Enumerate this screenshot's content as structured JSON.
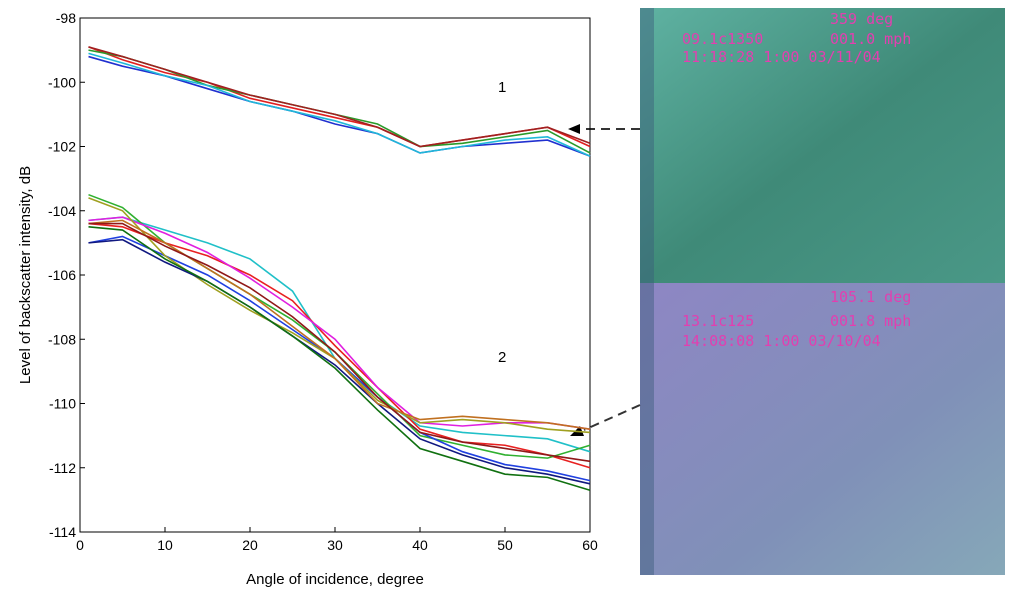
{
  "chart_data": {
    "type": "line",
    "x_label": "Angle of incidence, degree",
    "y_label": "Level of backscatter intensity, dB",
    "annotations": [
      "1",
      "2"
    ],
    "xlim": [
      0,
      60
    ],
    "xticks": [
      0,
      10,
      20,
      30,
      40,
      50,
      60
    ],
    "ylim": [
      -114,
      -98
    ],
    "yticks": [
      -114,
      -112,
      -110,
      -108,
      -106,
      -104,
      -102,
      -100,
      -98
    ],
    "x": [
      1,
      5,
      10,
      15,
      20,
      25,
      30,
      35,
      40,
      45,
      50,
      55,
      60
    ],
    "series": [
      {
        "color": "#e02020",
        "values": [
          -98.9,
          -99.3,
          -99.7,
          -100.0,
          -100.5,
          -100.8,
          -101.1,
          -101.4,
          -102.0,
          -101.8,
          -101.6,
          -101.4,
          -102.0
        ]
      },
      {
        "color": "#2a9a2a",
        "values": [
          -99.0,
          -99.2,
          -99.6,
          -100.1,
          -100.4,
          -100.7,
          -101.0,
          -101.3,
          -102.0,
          -101.9,
          -101.7,
          -101.5,
          -102.2
        ]
      },
      {
        "color": "#2030d0",
        "values": [
          -99.2,
          -99.5,
          -99.8,
          -100.2,
          -100.6,
          -100.9,
          -101.3,
          -101.6,
          -102.2,
          -102.0,
          -101.9,
          -101.8,
          -102.3
        ]
      },
      {
        "color": "#20b8d8",
        "values": [
          -99.1,
          -99.4,
          -99.8,
          -100.1,
          -100.6,
          -100.9,
          -101.2,
          -101.6,
          -102.2,
          -102.0,
          -101.8,
          -101.7,
          -102.3
        ]
      },
      {
        "color": "#a02020",
        "values": [
          -98.9,
          -99.2,
          -99.6,
          -100.0,
          -100.4,
          -100.7,
          -101.0,
          -101.4,
          -102.0,
          -101.8,
          -101.6,
          -101.4,
          -101.9
        ]
      },
      {
        "color": "#20c0c8",
        "values": [
          -104.3,
          -104.2,
          -104.6,
          -105.0,
          -105.5,
          -106.5,
          -108.6,
          -109.8,
          -110.7,
          -110.9,
          -111.0,
          -111.1,
          -111.5
        ]
      },
      {
        "color": "#e82020",
        "values": [
          -104.4,
          -104.5,
          -105.0,
          -105.4,
          -106.0,
          -106.8,
          -108.2,
          -109.5,
          -110.8,
          -111.2,
          -111.3,
          -111.6,
          -112.0
        ]
      },
      {
        "color": "#30b030",
        "values": [
          -103.5,
          -103.9,
          -105.0,
          -105.8,
          -106.6,
          -107.4,
          -108.4,
          -109.7,
          -111.0,
          -111.3,
          -111.6,
          -111.7,
          -111.3
        ]
      },
      {
        "color": "#2040e0",
        "values": [
          -105.0,
          -104.8,
          -105.4,
          -106.0,
          -106.8,
          -107.7,
          -108.6,
          -109.8,
          -110.9,
          -111.5,
          -111.9,
          -112.1,
          -112.4
        ]
      },
      {
        "color": "#e020e0",
        "values": [
          -104.3,
          -104.2,
          -104.7,
          -105.3,
          -106.1,
          -107.0,
          -108.0,
          -109.5,
          -110.6,
          -110.7,
          -110.6,
          -110.6,
          -110.8
        ]
      },
      {
        "color": "#a0a020",
        "values": [
          -103.6,
          -104.0,
          -105.4,
          -106.3,
          -107.1,
          -107.8,
          -108.6,
          -109.9,
          -110.6,
          -110.5,
          -110.6,
          -110.8,
          -110.9
        ]
      },
      {
        "color": "#101880",
        "values": [
          -105.0,
          -104.9,
          -105.6,
          -106.2,
          -107.0,
          -107.9,
          -108.8,
          -110.0,
          -111.1,
          -111.6,
          -112.0,
          -112.2,
          -112.5
        ]
      },
      {
        "color": "#107010",
        "values": [
          -104.5,
          -104.6,
          -105.5,
          -106.2,
          -107.0,
          -107.9,
          -108.9,
          -110.2,
          -111.4,
          -111.8,
          -112.2,
          -112.3,
          -112.7
        ]
      },
      {
        "color": "#c07020",
        "values": [
          -104.4,
          -104.3,
          -105.0,
          -105.8,
          -106.6,
          -107.6,
          -108.6,
          -110.0,
          -110.5,
          -110.4,
          -110.5,
          -110.6,
          -110.8
        ]
      },
      {
        "color": "#901818",
        "values": [
          -104.4,
          -104.4,
          -105.1,
          -105.7,
          -106.4,
          -107.3,
          -108.4,
          -109.8,
          -110.9,
          -111.2,
          -111.4,
          -111.6,
          -111.8
        ]
      }
    ]
  },
  "photos": {
    "top": [
      "359 deg",
      "09.1c1350",
      "001.0 mph",
      "11:18:28 1:00 03/11/04"
    ],
    "bottom": [
      "105.1 deg",
      "13.1c125",
      "001.8 mph",
      "14:08:08 1:00 03/10/04"
    ]
  }
}
